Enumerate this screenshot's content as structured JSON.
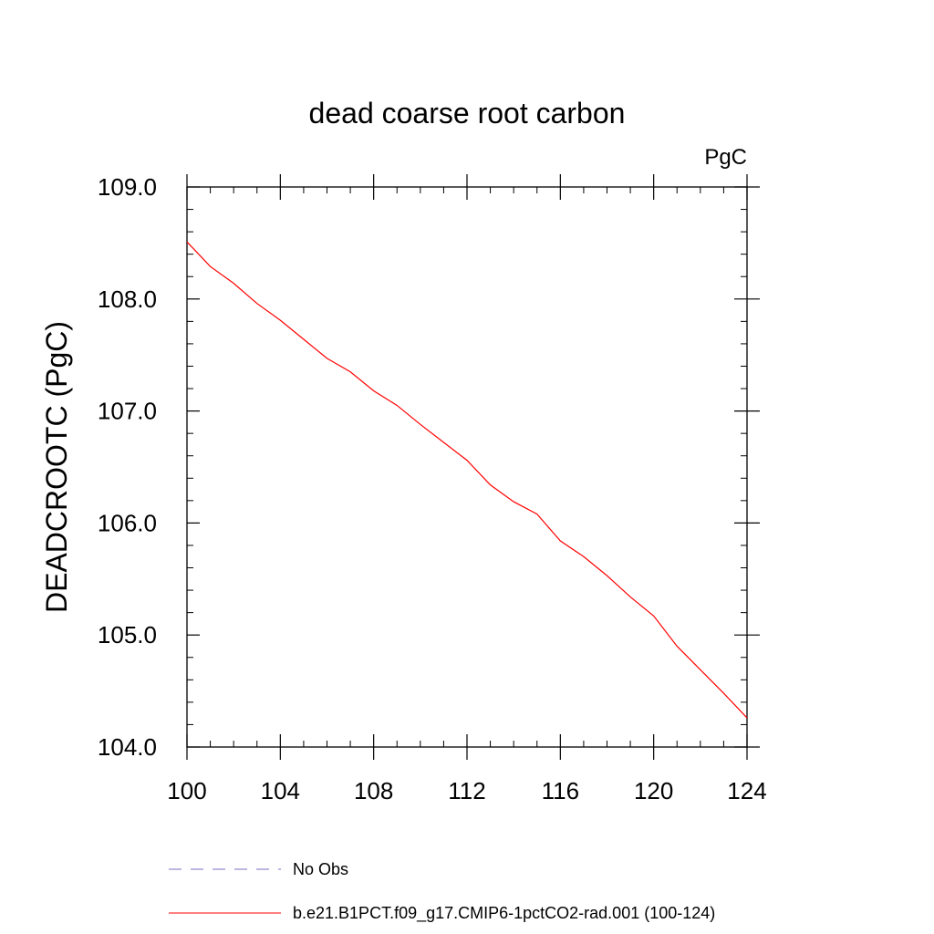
{
  "chart_data": {
    "type": "line",
    "title": "dead coarse root carbon",
    "units_label": "PgC",
    "xlabel": "",
    "ylabel": "DEADCROOTC  (PgC)",
    "xlim": [
      100,
      124
    ],
    "ylim": [
      104.0,
      109.0
    ],
    "x_ticks": [
      100,
      104,
      108,
      112,
      116,
      120,
      124
    ],
    "x_tick_labels": [
      "100",
      "104",
      "108",
      "112",
      "116",
      "120",
      "124"
    ],
    "y_ticks": [
      104.0,
      105.0,
      106.0,
      107.0,
      108.0,
      109.0
    ],
    "y_tick_labels": [
      "104.0",
      "105.0",
      "106.0",
      "107.0",
      "108.0",
      "109.0"
    ],
    "grid": false,
    "legend_position": "bottom",
    "series": [
      {
        "name": "b.e21.B1PCT.f09_g17.CMIP6-1pctCO2-rad.001 (100-124)",
        "color": "#ff0000",
        "dash": "solid",
        "x": [
          100,
          101,
          102,
          103,
          104,
          105,
          106,
          107,
          108,
          109,
          110,
          111,
          112,
          113,
          114,
          115,
          116,
          117,
          118,
          119,
          120,
          121,
          122,
          123,
          124
        ],
        "values": [
          108.51,
          108.29,
          108.14,
          107.96,
          107.81,
          107.64,
          107.47,
          107.35,
          107.18,
          107.05,
          106.88,
          106.72,
          106.56,
          106.34,
          106.19,
          106.08,
          105.84,
          105.7,
          105.53,
          105.34,
          105.17,
          104.9,
          104.69,
          104.48,
          104.26
        ]
      },
      {
        "name": "No Obs",
        "color": "#7a6fc0",
        "dash": "dashed",
        "x": [],
        "values": []
      }
    ]
  }
}
